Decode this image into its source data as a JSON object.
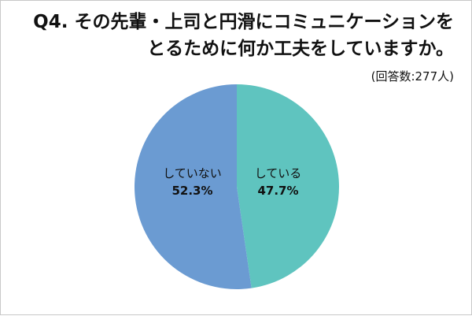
{
  "chart_data": {
    "type": "pie",
    "title_line1": "Q4. その先輩・上司と円滑にコミュニケーションを",
    "title_line2": "とるために何か工夫をしていますか。",
    "note": "(回答数:277人)",
    "slices": [
      {
        "label": "している",
        "value": 47.7,
        "display": "47.7%",
        "color": "#5fc4bf"
      },
      {
        "label": "していない",
        "value": 52.3,
        "display": "52.3%",
        "color": "#6b9bd2"
      }
    ],
    "start": "top",
    "direction": "clockwise"
  }
}
